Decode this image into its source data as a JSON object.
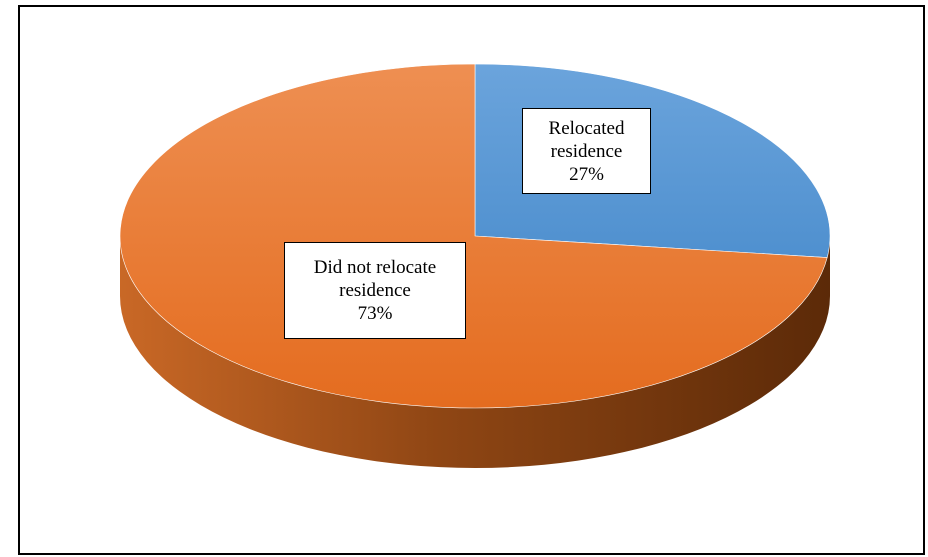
{
  "chart_data": {
    "type": "pie",
    "title": "",
    "style": "3d",
    "categories": [
      "Relocated residence",
      "Did not relocate residence"
    ],
    "values": [
      27,
      73
    ],
    "value_labels": [
      "27%",
      "73%"
    ],
    "colors": [
      "#5b9bd5",
      "#ed7d31"
    ],
    "labels": [
      {
        "line1": "Relocated",
        "line2": "residence",
        "pct": "27%"
      },
      {
        "line1": "Did not relocate",
        "line2": "residence",
        "pct": "73%"
      }
    ],
    "legend": "none"
  }
}
